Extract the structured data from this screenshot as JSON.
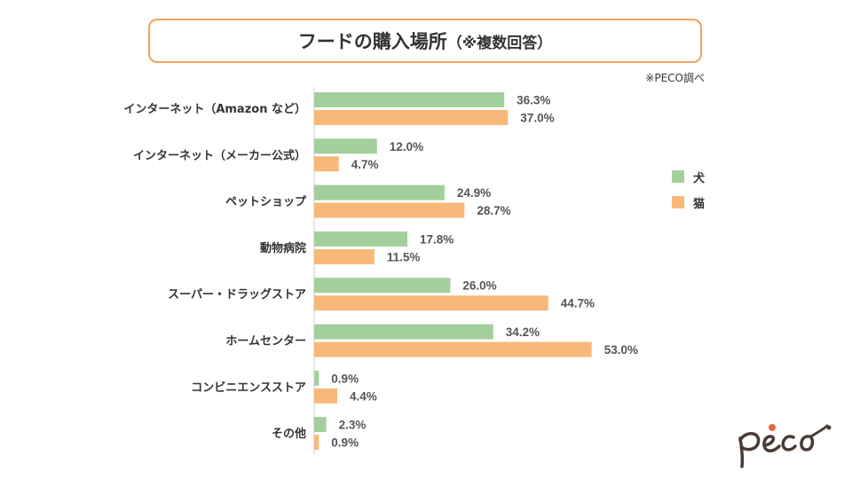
{
  "chart_data": {
    "type": "bar",
    "orientation": "horizontal",
    "title": "フードの購入場所",
    "title_note": "（※複数回答）",
    "source": "※PECO調べ",
    "categories": [
      "インターネット（Amazon など）",
      "インターネット（メーカー公式）",
      "ペットショップ",
      "動物病院",
      "スーパー・ドラッグストア",
      "ホームセンター",
      "コンビニエンスストア",
      "その他"
    ],
    "series": [
      {
        "name": "犬",
        "color": "#a3cf9c",
        "values": [
          36.3,
          12.0,
          24.9,
          17.8,
          26.0,
          34.2,
          0.9,
          2.3
        ],
        "labels": [
          "36.3%",
          "12.0%",
          "24.9%",
          "17.8%",
          "26.0%",
          "34.2%",
          "0.9%",
          "2.3%"
        ]
      },
      {
        "name": "猫",
        "color": "#f8b87a",
        "values": [
          37.0,
          4.7,
          28.7,
          11.5,
          44.7,
          53.0,
          4.4,
          0.9
        ],
        "labels": [
          "37.0%",
          "4.7%",
          "28.7%",
          "11.5%",
          "44.7%",
          "53.0%",
          "4.4%",
          "0.9%"
        ]
      }
    ],
    "xlim": [
      0,
      100
    ],
    "legend": "right"
  },
  "logo": {
    "text": "peco"
  }
}
